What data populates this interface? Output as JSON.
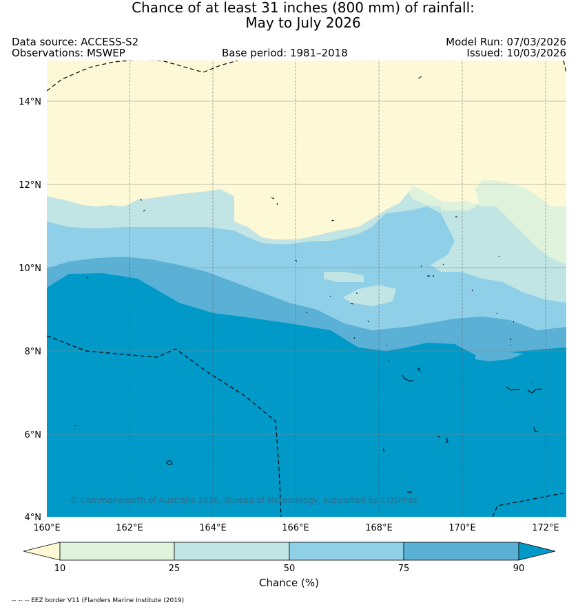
{
  "title": {
    "line1": "Chance of at least 31 inches (800  mm) of rainfall:",
    "line2": "May to July 2026"
  },
  "meta": {
    "data_source": "Data source: ACCESS-S2",
    "observations": "Observations: MSWEP",
    "base_period": "Base period: 1981–2018",
    "model_run": "Model Run: 07/03/2026",
    "issued": "Issued: 10/03/2026"
  },
  "map": {
    "lon_labels": [
      "160°E",
      "162°E",
      "164°E",
      "166°E",
      "168°E",
      "170°E",
      "172°E"
    ],
    "lat_labels": [
      "14°N",
      "12°N",
      "10°N",
      "8°N",
      "6°N",
      "4°N"
    ],
    "credit": "© Commonwealth of Australia 2026, Bureau of Meteorology, supported by COSPPac"
  },
  "colorbar": {
    "ticks": [
      "10",
      "25",
      "50",
      "75",
      "90"
    ],
    "title": "Chance (%)",
    "colors": [
      "#fdf8d6",
      "#dff3dc",
      "#c1e4e4",
      "#8fd0e8",
      "#5ab1d5",
      "#0099c8"
    ]
  },
  "footer": "-- -- -- EEZ border V11 (Flanders Marine Institute (2019)"
}
